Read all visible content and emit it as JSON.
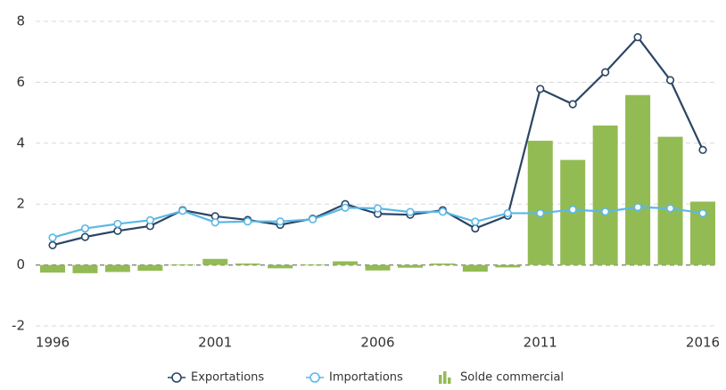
{
  "chart_data": {
    "type": "bar-line",
    "x": [
      1996,
      1997,
      1998,
      1999,
      2000,
      2001,
      2002,
      2003,
      2004,
      2005,
      2006,
      2007,
      2008,
      2009,
      2010,
      2011,
      2012,
      2013,
      2014,
      2015,
      2016
    ],
    "xlim": [
      1996,
      2016
    ],
    "xticks": [
      1996,
      2001,
      2006,
      2011,
      2016
    ],
    "ylim": [
      -2,
      8
    ],
    "yticks": [
      -2,
      0,
      2,
      4,
      6,
      8
    ],
    "grid": true,
    "legend": "bottom",
    "series": [
      {
        "name": "Exportations",
        "type": "line",
        "color": "#2b4565",
        "values": [
          0.65,
          0.92,
          1.12,
          1.28,
          1.8,
          1.6,
          1.48,
          1.32,
          1.52,
          2.0,
          1.68,
          1.65,
          1.8,
          1.2,
          1.62,
          5.78,
          5.28,
          6.33,
          7.48,
          6.07,
          3.78
        ]
      },
      {
        "name": "Importations",
        "type": "line",
        "color": "#5bb7e6",
        "values": [
          0.9,
          1.2,
          1.35,
          1.47,
          1.78,
          1.4,
          1.43,
          1.43,
          1.5,
          1.88,
          1.86,
          1.74,
          1.75,
          1.42,
          1.7,
          1.7,
          1.82,
          1.75,
          1.9,
          1.86,
          1.7
        ]
      },
      {
        "name": "Solde commercial",
        "type": "bar",
        "color": "#93bb54",
        "values": [
          -0.25,
          -0.27,
          -0.23,
          -0.19,
          0.02,
          0.2,
          0.05,
          -0.11,
          0.02,
          0.12,
          -0.18,
          -0.09,
          0.05,
          -0.22,
          -0.08,
          4.08,
          3.45,
          4.58,
          5.58,
          4.21,
          2.08
        ]
      }
    ]
  }
}
